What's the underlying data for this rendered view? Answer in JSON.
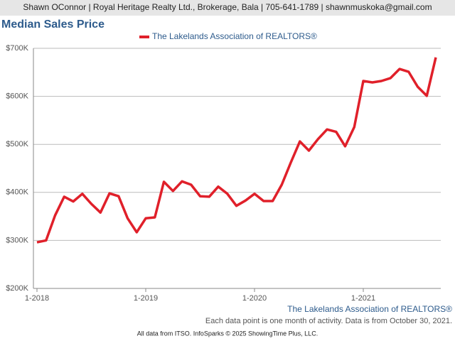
{
  "header": "Shawn OConnor | Royal Heritage Realty Ltd., Brokerage, Bala | 705-641-1789 | shawnmuskoka@gmail.com",
  "chart_data": {
    "type": "line",
    "title": "Median Sales Price",
    "categories": [
      "1-2018",
      null,
      null,
      null,
      null,
      null,
      null,
      null,
      null,
      null,
      null,
      null,
      "1-2019",
      null,
      null,
      null,
      null,
      null,
      null,
      null,
      null,
      null,
      null,
      null,
      "1-2020",
      null,
      null,
      null,
      null,
      null,
      null,
      null,
      null,
      null,
      null,
      null,
      "1-2021",
      null,
      null,
      null,
      null,
      null,
      null,
      null,
      null
    ],
    "series": [
      {
        "name": "The Lakelands Association of REALTORS®",
        "color": "#e0202a",
        "values": [
          296000,
          300000,
          352000,
          391000,
          381000,
          397000,
          376000,
          358000,
          398000,
          392000,
          346000,
          317000,
          346000,
          348000,
          422000,
          403000,
          423000,
          416000,
          392000,
          391000,
          412000,
          397000,
          372000,
          383000,
          397000,
          382000,
          382000,
          416000,
          462000,
          506000,
          487000,
          511000,
          531000,
          526000,
          496000,
          536000,
          632000,
          629000,
          632000,
          638000,
          657000,
          651000,
          620000,
          601000,
          681000
        ]
      }
    ],
    "ylim": [
      200000,
      700000
    ],
    "yticks": [
      {
        "value": 200000,
        "label": "$200K"
      },
      {
        "value": 300000,
        "label": "$300K"
      },
      {
        "value": 400000,
        "label": "$400K"
      },
      {
        "value": 500000,
        "label": "$500K"
      },
      {
        "value": 600000,
        "label": "$600K"
      },
      {
        "value": 700000,
        "label": "$700K"
      }
    ],
    "grid": true,
    "legend": "top"
  },
  "footer": {
    "source": "The Lakelands Association of REALTORS®",
    "note": "Each data point is one month of activity. Data is from October 30, 2021.",
    "credit": "All data from ITSO. InfoSparks © 2025 ShowingTime Plus, LLC."
  }
}
